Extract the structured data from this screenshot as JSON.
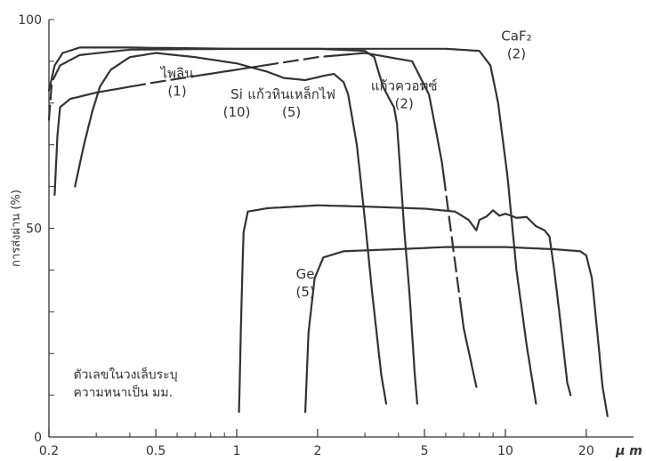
{
  "chart_data": {
    "type": "line",
    "title": "",
    "xlabel": "μ m",
    "ylabel": "การส่งผ่าน (%)",
    "x_scale": "log",
    "xlim": [
      0.2,
      30
    ],
    "ylim": [
      0,
      100
    ],
    "x_ticks": [
      0.2,
      0.5,
      1,
      2,
      5,
      10,
      20
    ],
    "x_tick_labels": [
      "0.2",
      "0.5",
      "1",
      "2",
      "5",
      "10",
      "20"
    ],
    "y_ticks": [
      0,
      50,
      100
    ],
    "y_tick_labels": [
      "0",
      "50",
      "100"
    ],
    "grid": false,
    "series": [
      {
        "name": "ไพลิน (1)",
        "label_lines": [
          "ไพลิน",
          "(1)"
        ],
        "label_at": [
          0.6,
          86
        ],
        "points": [
          [
            0.21,
            58
          ],
          [
            0.215,
            72
          ],
          [
            0.22,
            79
          ],
          [
            0.24,
            81
          ],
          [
            0.3,
            82.5
          ],
          [
            0.5,
            85
          ],
          [
            1,
            88
          ],
          [
            2,
            91
          ],
          [
            3,
            92
          ],
          [
            4.5,
            90
          ],
          [
            5.2,
            82
          ],
          [
            5.8,
            66
          ],
          [
            6.4,
            45
          ],
          [
            7,
            26
          ],
          [
            7.8,
            12
          ]
        ]
      },
      {
        "name": "แก้วหินเหล็กไฟ (5)",
        "label_lines": [
          "แก้วหินเหล็กไฟ",
          "(5)"
        ],
        "label_at": [
          1.6,
          81
        ],
        "points": [
          [
            0.25,
            60
          ],
          [
            0.27,
            70
          ],
          [
            0.29,
            78
          ],
          [
            0.31,
            84
          ],
          [
            0.34,
            88
          ],
          [
            0.4,
            91
          ],
          [
            0.5,
            92
          ],
          [
            0.7,
            91
          ],
          [
            1,
            89.5
          ],
          [
            1.3,
            87.5
          ],
          [
            1.5,
            86
          ],
          [
            1.8,
            85.5
          ],
          [
            2.1,
            86.5
          ],
          [
            2.3,
            87
          ],
          [
            2.5,
            85
          ],
          [
            2.6,
            82
          ],
          [
            2.8,
            70
          ],
          [
            3,
            52
          ],
          [
            3.2,
            34
          ],
          [
            3.45,
            15
          ],
          [
            3.6,
            8
          ]
        ]
      },
      {
        "name": "แก้วควอทซ์ (2)",
        "label_lines": [
          "แก้วควอทซ์",
          "(2)"
        ],
        "label_at": [
          4.2,
          83
        ],
        "points": [
          [
            0.2,
            83
          ],
          [
            0.21,
            89
          ],
          [
            0.225,
            92
          ],
          [
            0.26,
            93.3
          ],
          [
            0.4,
            93.3
          ],
          [
            1,
            93
          ],
          [
            2,
            93
          ],
          [
            3,
            92.5
          ],
          [
            3.25,
            91
          ],
          [
            3.5,
            84
          ],
          [
            3.7,
            81
          ],
          [
            3.85,
            79
          ],
          [
            3.95,
            75
          ],
          [
            4.05,
            65
          ],
          [
            4.2,
            50
          ],
          [
            4.4,
            34
          ],
          [
            4.6,
            15
          ],
          [
            4.7,
            8
          ]
        ]
      },
      {
        "name": "CaF₂ (2)",
        "label_lines": [
          "CaF₂",
          "(2)"
        ],
        "label_at": [
          11,
          95
        ],
        "points": [
          [
            0.2,
            76
          ],
          [
            0.205,
            85
          ],
          [
            0.22,
            89
          ],
          [
            0.26,
            91.5
          ],
          [
            0.4,
            92.8
          ],
          [
            1,
            93
          ],
          [
            3,
            93
          ],
          [
            6,
            93
          ],
          [
            8,
            92.5
          ],
          [
            8.8,
            89
          ],
          [
            9.4,
            80
          ],
          [
            10.2,
            62
          ],
          [
            11,
            40
          ],
          [
            12,
            22
          ],
          [
            13,
            8
          ]
        ]
      },
      {
        "name": "Si (10)",
        "label_lines": [
          "Si",
          "(10)"
        ],
        "label_at": [
          1.0,
          81
        ],
        "points": [
          [
            1.02,
            6
          ],
          [
            1.04,
            30
          ],
          [
            1.06,
            49
          ],
          [
            1.1,
            54
          ],
          [
            1.3,
            54.8
          ],
          [
            2,
            55.5
          ],
          [
            3,
            55.2
          ],
          [
            5,
            54.7
          ],
          [
            6.5,
            54
          ],
          [
            7.3,
            52
          ],
          [
            7.8,
            49.5
          ],
          [
            8,
            52
          ],
          [
            8.5,
            52.8
          ],
          [
            9,
            54.3
          ],
          [
            9.5,
            53
          ],
          [
            10,
            53.5
          ],
          [
            11,
            52.5
          ],
          [
            12,
            52.7
          ],
          [
            13,
            50.5
          ],
          [
            14,
            49.5
          ],
          [
            14.6,
            48
          ],
          [
            15.2,
            40
          ],
          [
            16,
            28
          ],
          [
            17,
            13
          ],
          [
            17.5,
            10
          ]
        ]
      },
      {
        "name": "Ge (5)",
        "label_lines": [
          "Ge",
          "(5)"
        ],
        "label_at": [
          1.8,
          38
        ],
        "points": [
          [
            1.8,
            6
          ],
          [
            1.85,
            25
          ],
          [
            1.95,
            38
          ],
          [
            2.1,
            43
          ],
          [
            2.5,
            44.5
          ],
          [
            4,
            45
          ],
          [
            6,
            45.5
          ],
          [
            10,
            45.5
          ],
          [
            15,
            45
          ],
          [
            19,
            44.5
          ],
          [
            20,
            43.5
          ],
          [
            21,
            38
          ],
          [
            22,
            25
          ],
          [
            23,
            12
          ],
          [
            24,
            5
          ]
        ]
      }
    ],
    "dashed_segments": [
      {
        "series": "ไพลิน (1)",
        "x_range": [
          0.4,
          0.75
        ]
      },
      {
        "series": "ไพลิน (1)",
        "x_range": [
          1.25,
          2.2
        ]
      },
      {
        "series": "ไพลิน (1)",
        "x_range": [
          5.9,
          6.8
        ]
      },
      {
        "series": "CaF₂ (2)",
        "x_range": [
          0.2,
          0.21
        ]
      }
    ],
    "annotations": [
      {
        "text_lines": [
          "ตัวเลขในวงเล็บระบุ",
          "ความหนาเป็น มม."
        ],
        "anchor": [
          0.225,
          14
        ]
      }
    ]
  }
}
